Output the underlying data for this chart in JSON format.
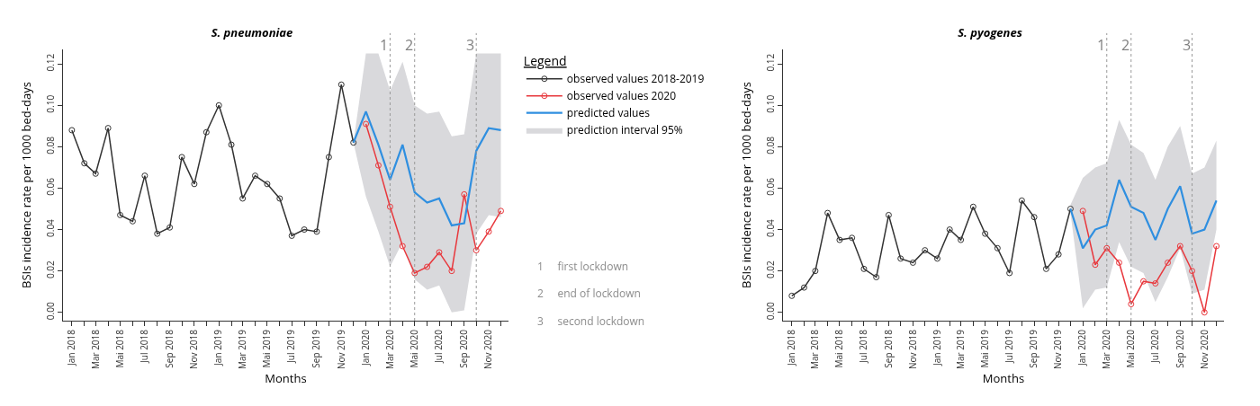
{
  "chart_data": [
    {
      "type": "line",
      "title": "S. pneumoniae",
      "xlabel": "Months",
      "ylabel": "BSIs incidence rate per 1000 bed-days",
      "legend_title": "Legend",
      "x": [
        "2018-01",
        "2018-02",
        "2018-03",
        "2018-04",
        "2018-05",
        "2018-06",
        "2018-07",
        "2018-08",
        "2018-09",
        "2018-10",
        "2018-11",
        "2018-12",
        "2019-01",
        "2019-02",
        "2019-03",
        "2019-04",
        "2019-05",
        "2019-06",
        "2019-07",
        "2019-08",
        "2019-09",
        "2019-10",
        "2019-11",
        "2019-12",
        "2020-01",
        "2020-02",
        "2020-03",
        "2020-04",
        "2020-05",
        "2020-06",
        "2020-07",
        "2020-08",
        "2020-09",
        "2020-10",
        "2020-11",
        "2020-12"
      ],
      "series": [
        {
          "name": "observed values 2018-2019",
          "color": "#333333",
          "marker": "circle",
          "values": [
            0.088,
            0.072,
            0.067,
            0.089,
            0.047,
            0.044,
            0.066,
            0.038,
            0.041,
            0.075,
            0.062,
            0.087,
            0.1,
            0.081,
            0.055,
            0.066,
            0.062,
            0.055,
            0.037,
            0.04,
            0.039,
            0.075,
            0.11,
            0.082,
            null,
            null,
            null,
            null,
            null,
            null,
            null,
            null,
            null,
            null,
            null,
            null
          ]
        },
        {
          "name": "observed values 2020",
          "color": "#e8383d",
          "marker": "circle",
          "values": [
            null,
            null,
            null,
            null,
            null,
            null,
            null,
            null,
            null,
            null,
            null,
            null,
            null,
            null,
            null,
            null,
            null,
            null,
            null,
            null,
            null,
            null,
            null,
            null,
            0.091,
            0.071,
            0.051,
            0.032,
            0.019,
            0.022,
            0.029,
            0.02,
            0.057,
            0.03,
            0.039,
            0.049
          ]
        },
        {
          "name": "predicted values",
          "color": "#2f8fe0",
          "marker": "none",
          "values": [
            null,
            null,
            null,
            null,
            null,
            null,
            null,
            null,
            null,
            null,
            null,
            null,
            null,
            null,
            null,
            null,
            null,
            null,
            null,
            null,
            null,
            null,
            null,
            0.082,
            0.097,
            0.081,
            0.064,
            0.081,
            0.058,
            0.053,
            0.055,
            0.042,
            0.043,
            0.078,
            0.089,
            0.088
          ],
          "lower": [
            null,
            null,
            null,
            null,
            null,
            null,
            null,
            null,
            null,
            null,
            null,
            null,
            null,
            null,
            null,
            null,
            null,
            null,
            null,
            null,
            null,
            null,
            null,
            0.082,
            0.056,
            0.039,
            0.022,
            0.034,
            0.016,
            0.011,
            0.013,
            0.0,
            0.001,
            0.038,
            0.047,
            0.046
          ],
          "upper": [
            null,
            null,
            null,
            null,
            null,
            null,
            null,
            null,
            null,
            null,
            null,
            null,
            null,
            null,
            null,
            null,
            null,
            null,
            null,
            null,
            null,
            null,
            null,
            0.082,
            0.125,
            0.125,
            0.107,
            0.121,
            0.1,
            0.096,
            0.097,
            0.085,
            0.086,
            0.125,
            0.125,
            0.125
          ]
        }
      ],
      "xlim": [
        "2017-12-10",
        "2020-12-20"
      ],
      "xticks": [
        {
          "value": "2018-01",
          "label": "Jan 2018"
        },
        {
          "value": "2018-02",
          "label": null
        },
        {
          "value": "2018-03",
          "label": "Mar 2018"
        },
        {
          "value": "2018-04",
          "label": null
        },
        {
          "value": "2018-05",
          "label": "Mai 2018"
        },
        {
          "value": "2018-06",
          "label": null
        },
        {
          "value": "2018-07",
          "label": "Jul 2018"
        },
        {
          "value": "2018-08",
          "label": null
        },
        {
          "value": "2018-09",
          "label": "Sep 2018"
        },
        {
          "value": "2018-10",
          "label": null
        },
        {
          "value": "2018-11",
          "label": "Nov 2018"
        },
        {
          "value": "2018-12",
          "label": null
        },
        {
          "value": "2019-01",
          "label": "Jan 2019"
        },
        {
          "value": "2019-02",
          "label": null
        },
        {
          "value": "2019-03",
          "label": "Mar 2019"
        },
        {
          "value": "2019-04",
          "label": null
        },
        {
          "value": "2019-05",
          "label": "Mai 2019"
        },
        {
          "value": "2019-06",
          "label": null
        },
        {
          "value": "2019-07",
          "label": "Jul 2019"
        },
        {
          "value": "2019-08",
          "label": null
        },
        {
          "value": "2019-09",
          "label": "Sep 2019"
        },
        {
          "value": "2019-10",
          "label": null
        },
        {
          "value": "2019-11",
          "label": "Nov 2019"
        },
        {
          "value": "2019-12",
          "label": null
        },
        {
          "value": "2020-01",
          "label": "Jan 2020"
        },
        {
          "value": "2020-02",
          "label": null
        },
        {
          "value": "2020-03",
          "label": "Mar 2020"
        },
        {
          "value": "2020-04",
          "label": null
        },
        {
          "value": "2020-05",
          "label": "Mai 2020"
        },
        {
          "value": "2020-06",
          "label": null
        },
        {
          "value": "2020-07",
          "label": "Jul 2020"
        },
        {
          "value": "2020-08",
          "label": null
        },
        {
          "value": "2020-09",
          "label": "Sep 2020"
        },
        {
          "value": "2020-10",
          "label": null
        },
        {
          "value": "2020-11",
          "label": "Nov 2020"
        },
        {
          "value": "2020-12",
          "label": null
        }
      ],
      "ylim": [
        -0.004,
        0.127
      ],
      "yticks": [
        {
          "value": 0,
          "label": "0.00"
        },
        {
          "value": 0.02,
          "label": "0.02"
        },
        {
          "value": 0.04,
          "label": "0.04"
        },
        {
          "value": 0.06,
          "label": "0.06"
        },
        {
          "value": 0.08,
          "label": "0.08"
        },
        {
          "value": 0.1,
          "label": "0.10"
        },
        {
          "value": 0.12,
          "label": "0.12"
        }
      ],
      "ref_lines": [
        {
          "axis": "x",
          "value": "2020-03",
          "label": "1",
          "color": "#999999",
          "line_style": "dotted"
        },
        {
          "axis": "x",
          "value": "2020-05",
          "label": "2",
          "color": "#999999",
          "line_style": "dotted"
        },
        {
          "axis": "x",
          "value": "2020-10",
          "label": "3",
          "color": "#999999",
          "line_style": "dotted"
        }
      ],
      "annotations": [
        "prediction interval 95%",
        "1     first lockdown",
        "2     end of lockdown",
        "3     second lockdown"
      ],
      "grid": false,
      "legend": "right"
    },
    {
      "type": "line",
      "title": "S. pyogenes",
      "xlabel": "Months",
      "ylabel": "BSIs incidence rate per 1000 bed-days",
      "x": [
        "2018-01",
        "2018-02",
        "2018-03",
        "2018-04",
        "2018-05",
        "2018-06",
        "2018-07",
        "2018-08",
        "2018-09",
        "2018-10",
        "2018-11",
        "2018-12",
        "2019-01",
        "2019-02",
        "2019-03",
        "2019-04",
        "2019-05",
        "2019-06",
        "2019-07",
        "2019-08",
        "2019-09",
        "2019-10",
        "2019-11",
        "2019-12",
        "2020-01",
        "2020-02",
        "2020-03",
        "2020-04",
        "2020-05",
        "2020-06",
        "2020-07",
        "2020-08",
        "2020-09",
        "2020-10",
        "2020-11",
        "2020-12"
      ],
      "series": [
        {
          "color": "#333333",
          "marker": "circle",
          "values": [
            0.008,
            0.012,
            0.02,
            0.048,
            0.035,
            0.036,
            0.021,
            0.017,
            0.047,
            0.026,
            0.024,
            0.03,
            0.026,
            0.04,
            0.035,
            0.051,
            0.038,
            0.031,
            0.019,
            0.054,
            0.046,
            0.021,
            0.028,
            0.05,
            null,
            null,
            null,
            null,
            null,
            null,
            null,
            null,
            null,
            null,
            null,
            null
          ]
        },
        {
          "color": "#e8383d",
          "marker": "circle",
          "values": [
            null,
            null,
            null,
            null,
            null,
            null,
            null,
            null,
            null,
            null,
            null,
            null,
            null,
            null,
            null,
            null,
            null,
            null,
            null,
            null,
            null,
            null,
            null,
            null,
            0.049,
            0.023,
            0.031,
            0.024,
            0.004,
            0.015,
            0.014,
            0.024,
            0.032,
            0.02,
            0.0,
            0.032
          ]
        },
        {
          "color": "#2f8fe0",
          "marker": "none",
          "values": [
            null,
            null,
            null,
            null,
            null,
            null,
            null,
            null,
            null,
            null,
            null,
            null,
            null,
            null,
            null,
            null,
            null,
            null,
            null,
            null,
            null,
            null,
            null,
            0.05,
            0.031,
            0.04,
            0.042,
            0.064,
            0.051,
            0.048,
            0.035,
            0.05,
            0.061,
            0.038,
            0.04,
            0.054
          ],
          "lower": [
            null,
            null,
            null,
            null,
            null,
            null,
            null,
            null,
            null,
            null,
            null,
            null,
            null,
            null,
            null,
            null,
            null,
            null,
            null,
            null,
            null,
            null,
            null,
            0.048,
            0.002,
            0.011,
            0.012,
            0.034,
            0.022,
            0.019,
            0.005,
            0.017,
            0.031,
            0.009,
            0.011,
            0.04
          ],
          "upper": [
            null,
            null,
            null,
            null,
            null,
            null,
            null,
            null,
            null,
            null,
            null,
            null,
            null,
            null,
            null,
            null,
            null,
            null,
            null,
            null,
            null,
            null,
            null,
            0.052,
            0.065,
            0.07,
            0.072,
            0.093,
            0.081,
            0.077,
            0.064,
            0.08,
            0.09,
            0.067,
            0.07,
            0.083
          ]
        }
      ],
      "xlim": [
        "2017-12-10",
        "2020-12-20"
      ],
      "xticks": [
        {
          "value": "2018-01",
          "label": "Jan 2018"
        },
        {
          "value": "2018-02",
          "label": null
        },
        {
          "value": "2018-03",
          "label": "Mar 2018"
        },
        {
          "value": "2018-04",
          "label": null
        },
        {
          "value": "2018-05",
          "label": "Mai 2018"
        },
        {
          "value": "2018-06",
          "label": null
        },
        {
          "value": "2018-07",
          "label": "Jul 2018"
        },
        {
          "value": "2018-08",
          "label": null
        },
        {
          "value": "2018-09",
          "label": "Sep 2018"
        },
        {
          "value": "2018-10",
          "label": null
        },
        {
          "value": "2018-11",
          "label": "Nov 2018"
        },
        {
          "value": "2018-12",
          "label": null
        },
        {
          "value": "2019-01",
          "label": "Jan 2019"
        },
        {
          "value": "2019-02",
          "label": null
        },
        {
          "value": "2019-03",
          "label": "Mar 2019"
        },
        {
          "value": "2019-04",
          "label": null
        },
        {
          "value": "2019-05",
          "label": "Mai 2019"
        },
        {
          "value": "2019-06",
          "label": null
        },
        {
          "value": "2019-07",
          "label": "Jul 2019"
        },
        {
          "value": "2019-08",
          "label": null
        },
        {
          "value": "2019-09",
          "label": "Sep 2019"
        },
        {
          "value": "2019-10",
          "label": null
        },
        {
          "value": "2019-11",
          "label": "Nov 2019"
        },
        {
          "value": "2019-12",
          "label": null
        },
        {
          "value": "2020-01",
          "label": "Jan 2020"
        },
        {
          "value": "2020-02",
          "label": null
        },
        {
          "value": "2020-03",
          "label": "Mar 2020"
        },
        {
          "value": "2020-04",
          "label": null
        },
        {
          "value": "2020-05",
          "label": "Mai 2020"
        },
        {
          "value": "2020-06",
          "label": null
        },
        {
          "value": "2020-07",
          "label": "Jul 2020"
        },
        {
          "value": "2020-08",
          "label": null
        },
        {
          "value": "2020-09",
          "label": "Sep 2020"
        },
        {
          "value": "2020-10",
          "label": null
        },
        {
          "value": "2020-11",
          "label": "Nov 2020"
        },
        {
          "value": "2020-12",
          "label": null
        }
      ],
      "ylim": [
        -0.004,
        0.127
      ],
      "yticks": [
        {
          "value": 0,
          "label": "0.00"
        },
        {
          "value": 0.02,
          "label": "0.02"
        },
        {
          "value": 0.04,
          "label": "0.04"
        },
        {
          "value": 0.06,
          "label": "0.06"
        },
        {
          "value": 0.08,
          "label": "0.08"
        },
        {
          "value": 0.1,
          "label": "0.10"
        },
        {
          "value": 0.12,
          "label": "0.12"
        }
      ],
      "ref_lines": [
        {
          "axis": "x",
          "value": "2020-03",
          "label": "1",
          "color": "#999999",
          "line_style": "dotted"
        },
        {
          "axis": "x",
          "value": "2020-05",
          "label": "2",
          "color": "#999999",
          "line_style": "dotted"
        },
        {
          "axis": "x",
          "value": "2020-10",
          "label": "3",
          "color": "#999999",
          "line_style": "dotted"
        }
      ],
      "grid": false,
      "legend": false
    }
  ]
}
